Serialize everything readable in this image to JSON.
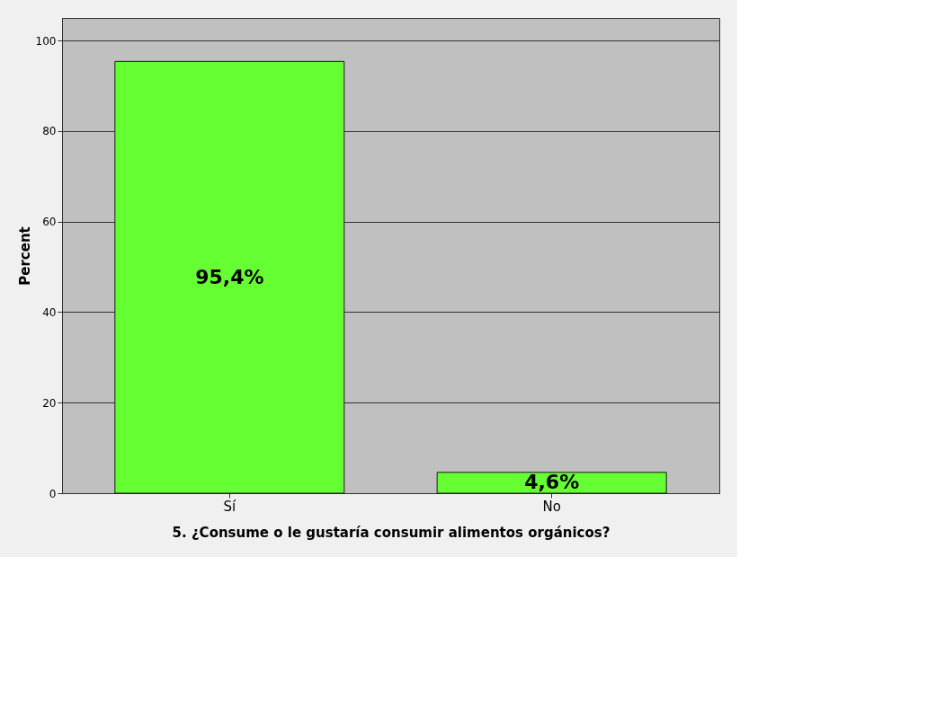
{
  "chart_data": {
    "type": "bar",
    "xlabel": "5. ¿Consume o le gustaría consumir alimentos orgánicos?",
    "ylabel": "Percent",
    "categories": [
      "Sí",
      "No"
    ],
    "values": [
      95.4,
      4.6
    ],
    "value_labels": [
      "95,4%",
      "4,6%"
    ],
    "color": "#66ff33",
    "ylim": [
      0,
      105
    ],
    "yticks": [
      0,
      20,
      40,
      60,
      80,
      100
    ],
    "grid": "y"
  }
}
